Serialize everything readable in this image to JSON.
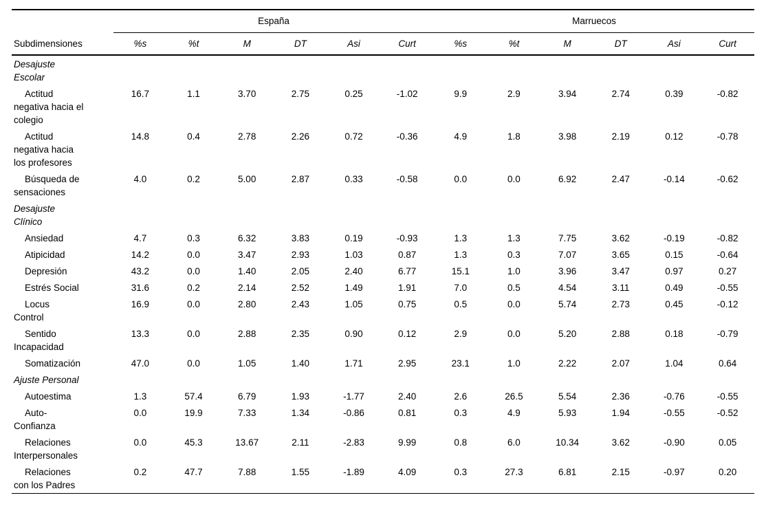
{
  "table": {
    "row_header_label": "Subdimensiones",
    "groups": [
      {
        "label": "España"
      },
      {
        "label": "Marruecos"
      }
    ],
    "stat_columns": [
      "%s",
      "%t",
      "M",
      "DT",
      "Asi",
      "Curt"
    ],
    "rows": [
      {
        "type": "section",
        "label_lines": [
          "Desajuste",
          "Escolar"
        ]
      },
      {
        "type": "item",
        "label_lines": [
          "Actitud",
          "negativa hacia el",
          "colegio"
        ],
        "espana": [
          "16.7",
          "1.1",
          "3.70",
          "2.75",
          "0.25",
          "-1.02"
        ],
        "marruecos": [
          "9.9",
          "2.9",
          "3.94",
          "2.74",
          "0.39",
          "-0.82"
        ]
      },
      {
        "type": "item",
        "label_lines": [
          "Actitud",
          "negativa hacia",
          "los profesores"
        ],
        "espana": [
          "14.8",
          "0.4",
          "2.78",
          "2.26",
          "0.72",
          "-0.36"
        ],
        "marruecos": [
          "4.9",
          "1.8",
          "3.98",
          "2.19",
          "0.12",
          "-0.78"
        ]
      },
      {
        "type": "item",
        "label_lines": [
          "Búsqueda de",
          "sensaciones"
        ],
        "espana": [
          "4.0",
          "0.2",
          "5.00",
          "2.87",
          "0.33",
          "-0.58"
        ],
        "marruecos": [
          "0.0",
          "0.0",
          "6.92",
          "2.47",
          "-0.14",
          "-0.62"
        ]
      },
      {
        "type": "section",
        "label_lines": [
          "Desajuste",
          "Clínico"
        ]
      },
      {
        "type": "item",
        "label_lines": [
          "Ansiedad"
        ],
        "espana": [
          "4.7",
          "0.3",
          "6.32",
          "3.83",
          "0.19",
          "-0.93"
        ],
        "marruecos": [
          "1.3",
          "1.3",
          "7.75",
          "3.62",
          "-0.19",
          "-0.82"
        ]
      },
      {
        "type": "item",
        "label_lines": [
          "Atipicidad"
        ],
        "espana": [
          "14.2",
          "0.0",
          "3.47",
          "2.93",
          "1.03",
          "0.87"
        ],
        "marruecos": [
          "1.3",
          "0.3",
          "7.07",
          "3.65",
          "0.15",
          "-0.64"
        ]
      },
      {
        "type": "item",
        "label_lines": [
          "Depresión"
        ],
        "espana": [
          "43.2",
          "0.0",
          "1.40",
          "2.05",
          "2.40",
          "6.77"
        ],
        "marruecos": [
          "15.1",
          "1.0",
          "3.96",
          "3.47",
          "0.97",
          "0.27"
        ]
      },
      {
        "type": "item",
        "label_lines": [
          "Estrés Social"
        ],
        "espana": [
          "31.6",
          "0.2",
          "2.14",
          "2.52",
          "1.49",
          "1.91"
        ],
        "marruecos": [
          "7.0",
          "0.5",
          "4.54",
          "3.11",
          "0.49",
          "-0.55"
        ]
      },
      {
        "type": "item",
        "label_lines": [
          "Locus",
          "Control"
        ],
        "espana": [
          "16.9",
          "0.0",
          "2.80",
          "2.43",
          "1.05",
          "0.75"
        ],
        "marruecos": [
          "0.5",
          "0.0",
          "5.74",
          "2.73",
          "0.45",
          "-0.12"
        ]
      },
      {
        "type": "item",
        "label_lines": [
          "Sentido",
          "Incapacidad"
        ],
        "espana": [
          "13.3",
          "0.0",
          "2.88",
          "2.35",
          "0.90",
          "0.12"
        ],
        "marruecos": [
          "2.9",
          "0.0",
          "5.20",
          "2.88",
          "0.18",
          "-0.79"
        ]
      },
      {
        "type": "item",
        "label_lines": [
          "Somatización"
        ],
        "espana": [
          "47.0",
          "0.0",
          "1.05",
          "1.40",
          "1.71",
          "2.95"
        ],
        "marruecos": [
          "23.1",
          "1.0",
          "2.22",
          "2.07",
          "1.04",
          "0.64"
        ]
      },
      {
        "type": "section",
        "label_lines": [
          "Ajuste Personal"
        ]
      },
      {
        "type": "item",
        "label_lines": [
          "Autoestima"
        ],
        "espana": [
          "1.3",
          "57.4",
          "6.79",
          "1.93",
          "-1.77",
          "2.40"
        ],
        "marruecos": [
          "2.6",
          "26.5",
          "5.54",
          "2.36",
          "-0.76",
          "-0.55"
        ]
      },
      {
        "type": "item",
        "label_lines": [
          "Auto-",
          "Confianza"
        ],
        "espana": [
          "0.0",
          "19.9",
          "7.33",
          "1.34",
          "-0.86",
          "0.81"
        ],
        "marruecos": [
          "0.3",
          "4.9",
          "5.93",
          "1.94",
          "-0.55",
          "-0.52"
        ]
      },
      {
        "type": "item",
        "label_lines": [
          "Relaciones",
          "Interpersonales"
        ],
        "espana": [
          "0.0",
          "45.3",
          "13.67",
          "2.11",
          "-2.83",
          "9.99"
        ],
        "marruecos": [
          "0.8",
          "6.0",
          "10.34",
          "3.62",
          "-0.90",
          "0.05"
        ]
      },
      {
        "type": "item",
        "label_lines": [
          "Relaciones",
          "con los Padres"
        ],
        "espana": [
          "0.2",
          "47.7",
          "7.88",
          "1.55",
          "-1.89",
          "4.09"
        ],
        "marruecos": [
          "0.3",
          "27.3",
          "6.81",
          "2.15",
          "-0.97",
          "0.20"
        ]
      }
    ]
  }
}
